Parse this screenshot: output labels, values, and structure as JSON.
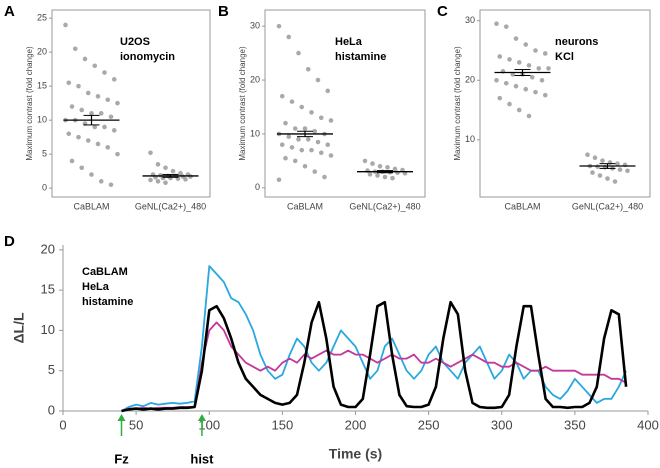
{
  "chart_data": [
    {
      "type": "beeswarm",
      "panel": "A",
      "y_label": "Maximum contrast (fold change)",
      "annotation": [
        "U2OS",
        "ionomycin"
      ],
      "categories": [
        "CaBLAM",
        "GeNL(Ca2+)_480"
      ],
      "groups": [
        {
          "values": [
            24,
            20.5,
            19,
            18,
            17,
            16,
            15.5,
            15,
            14,
            13.5,
            13,
            12.5,
            12,
            11.5,
            11,
            11,
            10.5,
            10,
            10,
            9.5,
            9,
            9,
            8.5,
            8,
            7.5,
            7,
            6.5,
            6,
            5,
            4,
            3,
            2,
            1,
            0.5
          ],
          "mean": 10,
          "error": 0.7
        },
        {
          "values": [
            5.2,
            3.5,
            3,
            2.5,
            2.2,
            2,
            2,
            1.9,
            1.8,
            1.8,
            1.7,
            1.7,
            1.6,
            1.5,
            1.5,
            1.4,
            1.3,
            1.2,
            1,
            0.8
          ],
          "mean": 1.8,
          "error": 0.2
        }
      ],
      "ylim": [
        -1.3,
        26.2
      ],
      "yticks": [
        0,
        5,
        10,
        15,
        20,
        25
      ]
    },
    {
      "type": "beeswarm",
      "panel": "B",
      "y_label": "Maximum contrast (fold change)",
      "annotation": [
        "HeLa",
        "histamine"
      ],
      "categories": [
        "CaBLAM",
        "GeNL(Ca2+)_480"
      ],
      "groups": [
        {
          "values": [
            30,
            28,
            25,
            22,
            20,
            18,
            17,
            16,
            15,
            14,
            13,
            12.5,
            12,
            11,
            11,
            10.5,
            10,
            10,
            9.5,
            9,
            9,
            8.5,
            8,
            8,
            7.5,
            7,
            7,
            6.5,
            6,
            5.5,
            5,
            4,
            3,
            2,
            1.5
          ],
          "mean": 10,
          "error": 0.5
        },
        {
          "values": [
            5,
            4.5,
            4,
            3.8,
            3.5,
            3.3,
            3.2,
            3,
            3,
            2.9,
            2.8,
            2.7,
            2.5,
            2.3,
            2,
            1.8
          ],
          "mean": 3,
          "error": 0.2
        }
      ],
      "ylim": [
        -1.7,
        33
      ],
      "yticks": [
        0,
        10,
        20,
        30
      ]
    },
    {
      "type": "beeswarm",
      "panel": "C",
      "y_label": "Maximum contrast (fold change)",
      "annotation": [
        "neurons",
        "KCl"
      ],
      "categories": [
        "CaBLAM",
        "GeNL(Ca2+)_480"
      ],
      "groups": [
        {
          "values": [
            29.5,
            29,
            27,
            26,
            25,
            24.5,
            24,
            23.5,
            23,
            22.5,
            22,
            22,
            21.5,
            21,
            21,
            20.5,
            20,
            20,
            19.5,
            19,
            18.5,
            18,
            17.5,
            17,
            16,
            15,
            14
          ],
          "mean": 21.3,
          "error": 0.5
        },
        {
          "values": [
            7.5,
            7,
            6.5,
            6.2,
            6,
            5.8,
            5.6,
            5.5,
            5.4,
            5.2,
            5,
            4.8,
            4.5,
            4,
            3.5,
            3
          ],
          "mean": 5.6,
          "error": 0.4
        }
      ],
      "ylim": [
        0.4,
        31.8
      ],
      "yticks": [
        10,
        20,
        30
      ]
    },
    {
      "type": "line",
      "panel": "D",
      "x_label": "Time (s)",
      "y_label": "ΔL/L",
      "annotation": [
        "CaBLAM",
        "HeLa",
        "histamine"
      ],
      "markers": [
        {
          "text": "Fz",
          "x": 40
        },
        {
          "text": "hist",
          "x": 95
        }
      ],
      "x": [
        40,
        45,
        50,
        55,
        60,
        65,
        70,
        75,
        80,
        85,
        90,
        95,
        100,
        105,
        110,
        115,
        120,
        125,
        130,
        135,
        140,
        145,
        150,
        155,
        160,
        165,
        170,
        175,
        180,
        185,
        190,
        195,
        200,
        205,
        210,
        215,
        220,
        225,
        230,
        235,
        240,
        245,
        250,
        255,
        260,
        265,
        270,
        275,
        280,
        285,
        290,
        295,
        300,
        305,
        310,
        315,
        320,
        325,
        330,
        335,
        340,
        345,
        350,
        355,
        360,
        365,
        370,
        375,
        380,
        385
      ],
      "series": [
        {
          "color": "#29a8e0",
          "values": [
            0,
            0.5,
            0.8,
            0.6,
            1,
            0.8,
            0.9,
            1,
            0.9,
            1,
            1.2,
            8,
            18,
            17,
            16,
            14,
            13.5,
            12,
            10,
            7,
            5,
            4,
            4.5,
            7,
            9,
            8,
            6,
            5,
            6,
            8,
            10,
            9,
            8,
            6,
            4,
            5,
            8,
            9,
            7,
            5,
            4,
            5,
            7,
            8,
            6,
            5,
            4,
            6,
            7,
            8,
            6,
            4,
            5,
            7,
            6,
            4,
            5,
            5,
            3,
            2,
            1.5,
            2.5,
            4,
            3,
            2,
            1,
            1.5,
            1.5,
            3,
            5
          ]
        },
        {
          "color": "#c2399b",
          "values": [
            0,
            0.3,
            0.3,
            0.4,
            0.3,
            0.4,
            0.4,
            0.4,
            0.5,
            0.5,
            0.5,
            6,
            10,
            11,
            10,
            8,
            7,
            6,
            5.5,
            5,
            5.5,
            5,
            6,
            6.5,
            6,
            7,
            6.5,
            7,
            7.5,
            7,
            7,
            7.5,
            7,
            7,
            6.5,
            6,
            6.5,
            7,
            6.5,
            6.5,
            7,
            6,
            6,
            6.5,
            6,
            5.5,
            6,
            6.5,
            7,
            6.5,
            6,
            6,
            5.5,
            5.5,
            6,
            5.5,
            5,
            5,
            5.5,
            5,
            5,
            5,
            5,
            4.5,
            4.5,
            4.5,
            4.5,
            4,
            4,
            3.5
          ]
        },
        {
          "color": "#000000",
          "values": [
            0,
            0.2,
            0.3,
            0.2,
            0.3,
            0.2,
            0.3,
            0.3,
            0.4,
            0.4,
            0.5,
            5,
            12.5,
            13,
            11.5,
            9,
            6,
            4,
            3,
            2,
            1.5,
            1,
            0.8,
            1,
            2,
            6,
            11,
            13.5,
            9,
            3,
            0.8,
            0.5,
            0.5,
            1.5,
            7,
            13,
            13.5,
            7,
            2,
            0.6,
            0.5,
            0.5,
            0.8,
            3,
            9,
            13.5,
            12,
            5,
            1,
            0.5,
            0.4,
            0.4,
            0.5,
            2,
            8,
            13,
            13,
            7,
            1.5,
            0.5,
            0.5,
            0.4,
            0.5,
            0.5,
            1,
            3,
            9,
            12.5,
            12,
            3
          ]
        }
      ],
      "xlim": [
        0,
        400
      ],
      "xticks": [
        0,
        50,
        100,
        150,
        200,
        250,
        300,
        350,
        400
      ],
      "ylim": [
        0,
        20.6
      ],
      "yticks": [
        0,
        5,
        10,
        15,
        20
      ]
    }
  ]
}
